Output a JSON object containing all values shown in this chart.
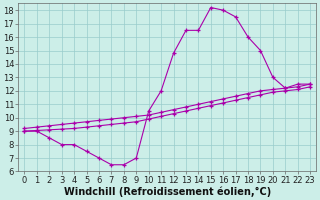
{
  "xlabel": "Windchill (Refroidissement éolien,°C)",
  "bg_color": "#cceee8",
  "line_color": "#aa00aa",
  "grid_color": "#99cccc",
  "axis_color": "#666666",
  "xlim": [
    -0.5,
    23.5
  ],
  "ylim": [
    6,
    18.5
  ],
  "xticks": [
    0,
    1,
    2,
    3,
    4,
    5,
    6,
    7,
    8,
    9,
    10,
    11,
    12,
    13,
    14,
    15,
    16,
    17,
    18,
    19,
    20,
    21,
    22,
    23
  ],
  "yticks": [
    6,
    7,
    8,
    9,
    10,
    11,
    12,
    13,
    14,
    15,
    16,
    17,
    18
  ],
  "line1_x": [
    0,
    1,
    2,
    3,
    4,
    5,
    6,
    7,
    8,
    9,
    10,
    11,
    12,
    13,
    14,
    15,
    16,
    17,
    18,
    19,
    20,
    21,
    22,
    23
  ],
  "line1_y": [
    9,
    9,
    8.5,
    8,
    8,
    7.5,
    7,
    6.5,
    6.5,
    7,
    10.5,
    12,
    14.8,
    16.5,
    16.5,
    18.2,
    18,
    17.5,
    16,
    15,
    13,
    12.2,
    12.5,
    12.5
  ],
  "line2_x": [
    0,
    1,
    2,
    3,
    4,
    5,
    6,
    7,
    8,
    9,
    10,
    11,
    12,
    13,
    14,
    15,
    16,
    17,
    18,
    19,
    20,
    21,
    22,
    23
  ],
  "line2_y": [
    9.2,
    9.3,
    9.4,
    9.5,
    9.6,
    9.7,
    9.8,
    9.9,
    10.0,
    10.1,
    10.2,
    10.4,
    10.6,
    10.8,
    11.0,
    11.2,
    11.4,
    11.6,
    11.8,
    12.0,
    12.1,
    12.2,
    12.3,
    12.5
  ],
  "line3_x": [
    0,
    1,
    2,
    3,
    4,
    5,
    6,
    7,
    8,
    9,
    10,
    11,
    12,
    13,
    14,
    15,
    16,
    17,
    18,
    19,
    20,
    21,
    22,
    23
  ],
  "line3_y": [
    9.0,
    9.05,
    9.1,
    9.15,
    9.2,
    9.3,
    9.4,
    9.5,
    9.6,
    9.7,
    9.9,
    10.1,
    10.3,
    10.5,
    10.7,
    10.9,
    11.1,
    11.3,
    11.5,
    11.7,
    11.9,
    12.0,
    12.1,
    12.3
  ],
  "font_size_ticks": 6.0,
  "font_size_xlabel": 7.0
}
